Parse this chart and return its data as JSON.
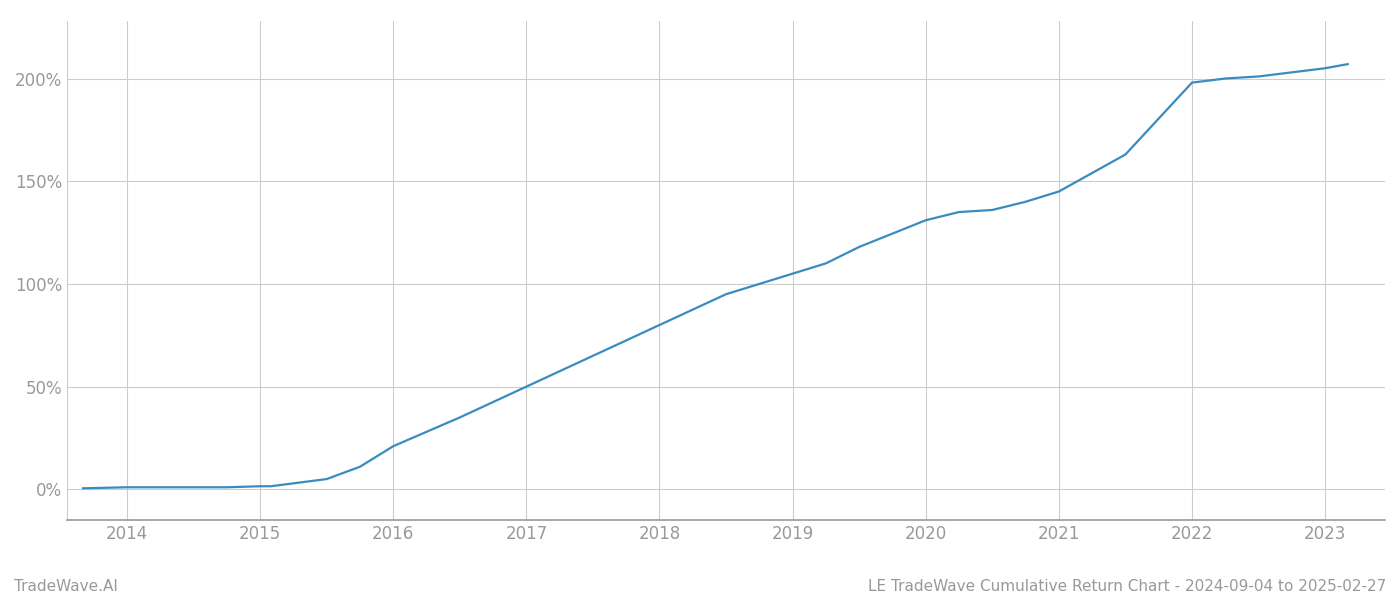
{
  "title": "LE TradeWave Cumulative Return Chart - 2024-09-04 to 2025-02-27",
  "watermark": "TradeWave.AI",
  "x_values": [
    2013.67,
    2014.0,
    2014.25,
    2014.5,
    2014.75,
    2015.0,
    2015.08,
    2015.5,
    2015.75,
    2016.0,
    2016.5,
    2017.0,
    2017.5,
    2018.0,
    2018.5,
    2019.0,
    2019.25,
    2019.5,
    2020.0,
    2020.25,
    2020.5,
    2020.75,
    2021.0,
    2021.5,
    2022.0,
    2022.25,
    2022.5,
    2022.75,
    2023.0,
    2023.17
  ],
  "y_values": [
    0.5,
    1.0,
    1.0,
    1.0,
    1.0,
    1.5,
    1.5,
    5.0,
    11.0,
    21.0,
    35.0,
    50.0,
    65.0,
    80.0,
    95.0,
    105.0,
    110.0,
    118.0,
    131.0,
    135.0,
    136.0,
    140.0,
    145.0,
    163.0,
    198.0,
    200.0,
    201.0,
    203.0,
    205.0,
    207.0
  ],
  "line_color": "#3a8bbf",
  "line_width": 1.6,
  "background_color": "#ffffff",
  "grid_color": "#cccccc",
  "tick_label_color": "#999999",
  "x_ticks": [
    2014,
    2015,
    2016,
    2017,
    2018,
    2019,
    2020,
    2021,
    2022,
    2023
  ],
  "y_ticks": [
    0,
    50,
    100,
    150,
    200
  ],
  "y_tick_labels": [
    "0%",
    "50%",
    "100%",
    "150%",
    "200%"
  ],
  "xlim": [
    2013.55,
    2023.45
  ],
  "ylim": [
    -15,
    228
  ]
}
